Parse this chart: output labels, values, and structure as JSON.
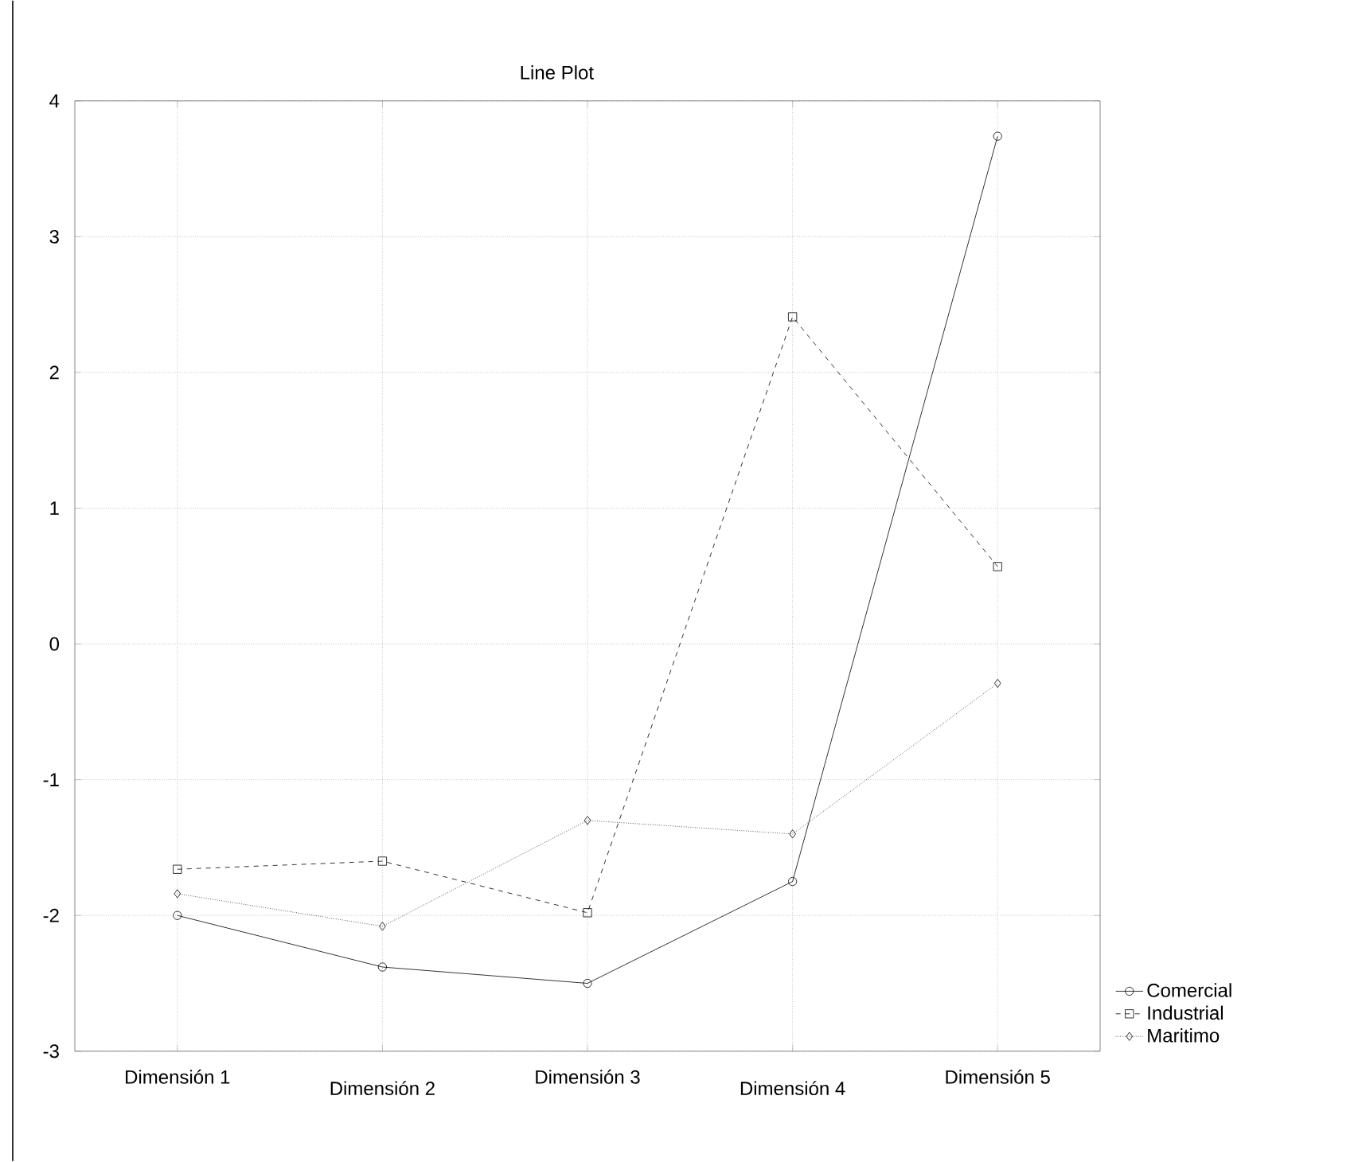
{
  "chart_data": {
    "type": "line",
    "title": "Line Plot",
    "categories": [
      "Dimensión 1",
      "Dimensión 2",
      "Dimensión 3",
      "Dimensión 4",
      "Dimensión 5"
    ],
    "series": [
      {
        "name": "Comercial",
        "color": "#000000",
        "marker": "circle",
        "line_style": "solid",
        "values": [
          -2.0,
          -2.38,
          -2.5,
          -1.75,
          3.74
        ]
      },
      {
        "name": "Industrial",
        "color": "#000000",
        "marker": "square",
        "line_style": "dashed",
        "values": [
          -1.66,
          -1.6,
          -1.98,
          2.41,
          0.57
        ]
      },
      {
        "name": "Maritimo",
        "color": "#000000",
        "marker": "diamond",
        "line_style": "dotted",
        "values": [
          -1.84,
          -2.08,
          -1.3,
          -1.4,
          -0.29
        ]
      }
    ],
    "ylim": [
      -3,
      4
    ],
    "yticks": [
      -3,
      -2,
      -1,
      0,
      1,
      2,
      3,
      4
    ],
    "grid": true,
    "legend": "bottom right"
  }
}
